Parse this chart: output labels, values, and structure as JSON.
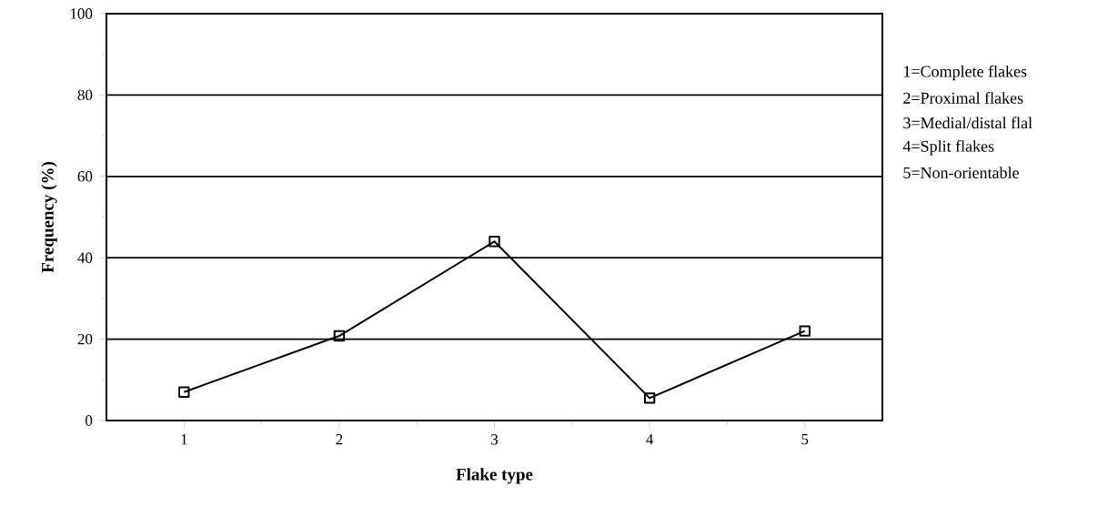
{
  "chart_data": {
    "type": "line",
    "xlabel": "Flake type",
    "ylabel": "Frequency (%)",
    "x": [
      1,
      2,
      3,
      4,
      5
    ],
    "values": [
      7,
      20.8,
      44,
      5.5,
      22
    ],
    "color": "#000000",
    "xlim": [
      0.5,
      5.5
    ],
    "ylim": [
      0,
      100
    ],
    "xticks": [
      1,
      2,
      3,
      4,
      5
    ],
    "yticks": [
      0,
      20,
      40,
      60,
      80,
      100
    ],
    "grid": "y",
    "marker": "square",
    "line_style": "solid",
    "annotations": [
      "1=Complete flakes",
      "2=Proximal flakes",
      "3=Medial/distal flal",
      "4=Split flakes",
      "5=Non-orientable"
    ]
  }
}
